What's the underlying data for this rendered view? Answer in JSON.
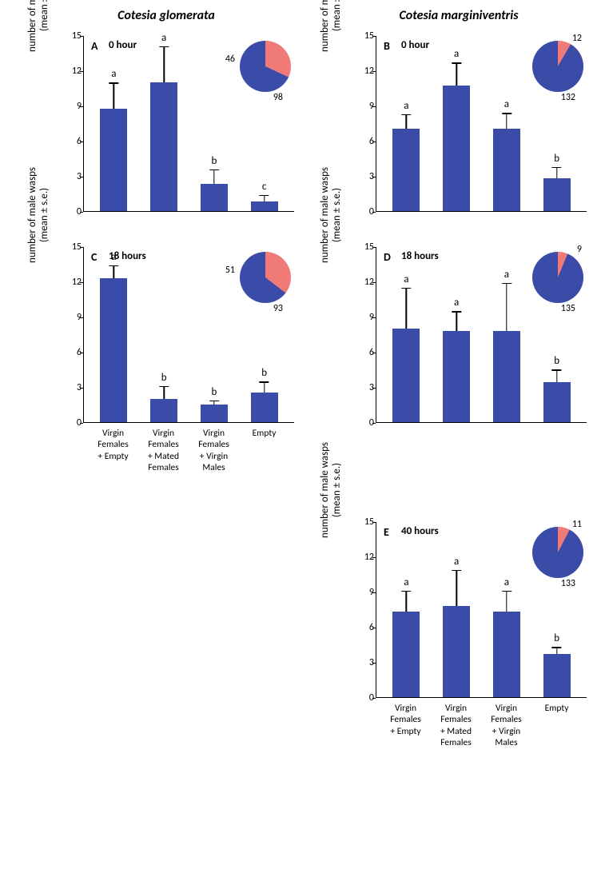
{
  "layout": {
    "columns": [
      "Cotesia glomerata",
      "Cotesia marginiventris"
    ],
    "ylabel": "number of male wasps<br>(mean ± s.e.)",
    "ylim": [
      0,
      15
    ],
    "ytick_step": 3,
    "bar_color": "#3b4ba8",
    "pie_colors": {
      "red": "#ef7a78",
      "blue": "#3b4ba8"
    },
    "categories": [
      "Virgin<br>Females<br>+ Empty",
      "Virgin<br>Females<br>+ Mated<br>Females",
      "Virgin<br>Females<br>+ Virgin<br>Males",
      "Empty"
    ]
  },
  "panels": {
    "A": {
      "time": "0 hour",
      "values": [
        8.7,
        11.0,
        2.3,
        0.8
      ],
      "errors": [
        2.2,
        3.0,
        1.2,
        0.5
      ],
      "sig": [
        "a",
        "a",
        "b",
        "c"
      ],
      "pie": {
        "red": 46,
        "blue": 98
      },
      "show_xlabels": false
    },
    "B": {
      "time": "0 hour",
      "values": [
        7.0,
        10.7,
        7.0,
        2.8
      ],
      "errors": [
        1.2,
        1.9,
        1.3,
        0.9
      ],
      "sig": [
        "a",
        "a",
        "a",
        "b"
      ],
      "pie": {
        "red": 12,
        "blue": 132
      },
      "show_xlabels": false
    },
    "C": {
      "time": "18 hours",
      "values": [
        12.3,
        2.0,
        1.5,
        2.5
      ],
      "errors": [
        1.0,
        1.0,
        0.3,
        0.9
      ],
      "sig": [
        "a",
        "b",
        "b",
        "b"
      ],
      "pie": {
        "red": 51,
        "blue": 93
      },
      "show_xlabels": true
    },
    "D": {
      "time": "18 hours",
      "values": [
        8.0,
        7.8,
        7.8,
        3.4
      ],
      "errors": [
        3.4,
        1.6,
        4.0,
        1.0
      ],
      "sig": [
        "a",
        "a",
        "a",
        "b"
      ],
      "pie": {
        "red": 9,
        "blue": 135
      },
      "show_xlabels": false
    },
    "E": {
      "time": "40 hours",
      "values": [
        7.3,
        7.8,
        7.3,
        3.7
      ],
      "errors": [
        1.7,
        3.0,
        1.7,
        0.5
      ],
      "sig": [
        "a",
        "a",
        "a",
        "b"
      ],
      "pie": {
        "red": 11,
        "blue": 133
      },
      "show_xlabels": true
    }
  },
  "grid_positions": {
    "A": {
      "col": 1,
      "row": 2
    },
    "B": {
      "col": 2,
      "row": 2
    },
    "C": {
      "col": 1,
      "row": 3
    },
    "D": {
      "col": 2,
      "row": 3
    },
    "E": {
      "col": 2,
      "row": 4
    }
  }
}
